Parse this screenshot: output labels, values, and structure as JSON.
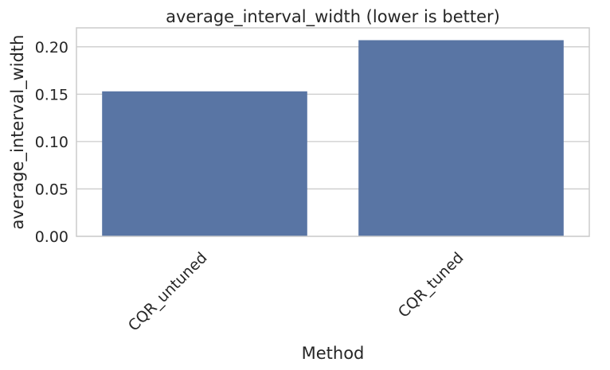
{
  "chart_data": {
    "type": "bar",
    "title": "average_interval_width (lower is better)",
    "xlabel": "Method",
    "ylabel": "average_interval_width",
    "categories": [
      "CQR_untuned",
      "CQR_tuned"
    ],
    "values": [
      0.153,
      0.207
    ],
    "ylim": [
      0,
      0.22
    ],
    "yticks": [
      0.0,
      0.05,
      0.1,
      0.15,
      0.2
    ],
    "ytick_labels": [
      "0.00",
      "0.05",
      "0.10",
      "0.15",
      "0.20"
    ],
    "grid": "horizontal",
    "bar_color": "#5975a4"
  }
}
